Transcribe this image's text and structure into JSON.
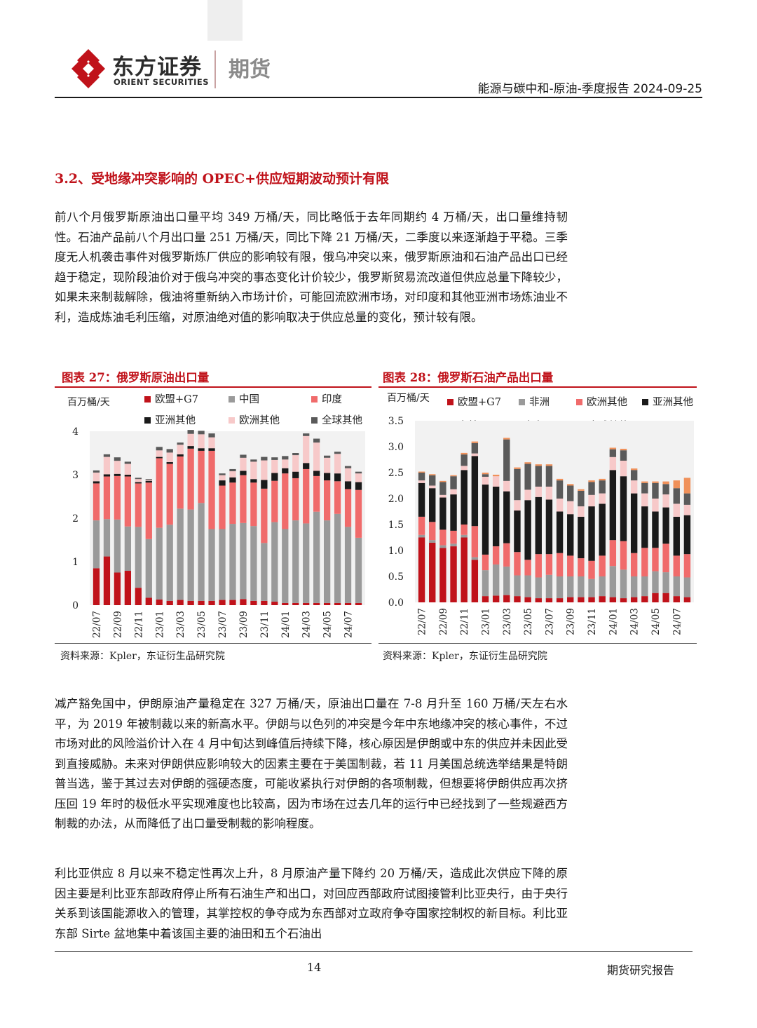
{
  "header": {
    "logo_cn": "东方证券",
    "logo_en": "ORIENT SECURITIES",
    "logo_tag": "期货",
    "report_title": "能源与碳中和-原油-季度报告 2024-09-25"
  },
  "section": {
    "title": "3.2、受地缘冲突影响的 OPEC+供应短期波动预计有限",
    "paragraph1": "前八个月俄罗斯原油出口量平均 349 万桶/天，同比略低于去年同期约 4 万桶/天，出口量维持韧性。石油产品前八个月出口量 251 万桶/天，同比下降 21 万桶/天，二季度以来逐渐趋于平稳。三季度无人机袭击事件对俄罗斯炼厂供应的影响较有限，俄乌冲突以来，俄罗斯原油和石油产品出口已经趋于稳定，现阶段油价对于俄乌冲突的事态变化计价较少，俄罗斯贸易流改道但供应总量下降较少，如果未来制裁解除，俄油将重新纳入市场计价，可能回流欧洲市场，对印度和其他亚洲市场炼油业不利，造成炼油毛利压缩，对原油绝对值的影响取决于供应总量的变化，预计较有限。",
    "paragraph2": "减产豁免国中，伊朗原油产量稳定在 327 万桶/天，原油出口量在 7-8 月升至 160 万桶/天左右水平，为 2019 年被制裁以来的新高水平。伊朗与以色列的冲突是今年中东地缘冲突的核心事件，不过市场对此的风险溢价计入在 4 月中旬达到峰值后持续下降，核心原因是伊朗或中东的供应并未因此受到直接威胁。未来对伊朗供应影响较大的因素主要在于美国制裁，若 11 月美国总统选举结果是特朗普当选，鉴于其过去对伊朗的强硬态度，可能收紧执行对伊朗的各项制裁，但想要将伊朗供应再次挤压回 19 年时的极低水平实现难度也比较高，因为市场在过去几年的运行中已经找到了一些规避西方制裁的办法，从而降低了出口量受制裁的影响程度。",
    "paragraph3": "利比亚供应 8 月以来不稳定性再次上升，8 月原油产量下降约 20 万桶/天，造成此次供应下降的原因主要是利比亚东部政府停止所有石油生产和出口，对回应西部政府试图接管利比亚央行，由于央行关系到该国能源收入的管理，其掌控权的争夺成为东西部对立政府争夺国家控制权的新目标。利比亚东部 Sirte 盆地集中着该国主要的油田和五个石油出"
  },
  "footer": {
    "page_number": "14",
    "label": "期货研究报告"
  },
  "chart_data": [
    {
      "type": "bar",
      "stacked": true,
      "title": "图表 27：俄罗斯原油出口量",
      "ylabel": "百万桶/天",
      "source": "资料来源：Kpler，东证衍生品研究院",
      "ylim": [
        0,
        4
      ],
      "yticks": [
        "0",
        "1",
        "2",
        "3",
        "4"
      ],
      "xtick_labels": [
        "22/07",
        "22/09",
        "22/11",
        "23/01",
        "23/03",
        "23/05",
        "23/07",
        "23/09",
        "23/11",
        "24/01",
        "24/03",
        "24/05",
        "24/07"
      ],
      "categories": [
        "22/07",
        "22/08",
        "22/09",
        "22/10",
        "22/11",
        "22/12",
        "23/01",
        "23/02",
        "23/03",
        "23/04",
        "23/05",
        "23/06",
        "23/07",
        "23/08",
        "23/09",
        "23/10",
        "23/11",
        "23/12",
        "24/01",
        "24/02",
        "24/03",
        "24/04",
        "24/05",
        "24/06",
        "24/07",
        "24/08"
      ],
      "series": [
        {
          "name": "欧盟+G7",
          "color": "#c0121a",
          "values": [
            0.85,
            1.12,
            0.75,
            0.79,
            0.4,
            0.17,
            0.13,
            0.1,
            0.12,
            0.1,
            0.1,
            0.1,
            0.12,
            0.12,
            0.14,
            0.1,
            0.1,
            0.08,
            0.05,
            0.05,
            0.05,
            0.05,
            0.05,
            0.05,
            0.05,
            0.05
          ]
        },
        {
          "name": "中国",
          "color": "#9a9a9a",
          "values": [
            1.1,
            0.86,
            1.22,
            1.02,
            1.4,
            1.35,
            1.65,
            1.75,
            2.1,
            2.1,
            2.25,
            1.65,
            1.63,
            1.75,
            1.75,
            1.72,
            1.33,
            1.83,
            1.7,
            1.9,
            1.83,
            2.1,
            1.9,
            2.05,
            1.75,
            1.5
          ]
        },
        {
          "name": "印度",
          "color": "#f06b6b",
          "values": [
            0.85,
            0.98,
            1.0,
            1.15,
            1.0,
            1.3,
            1.6,
            1.4,
            1.2,
            1.4,
            1.2,
            1.8,
            1.0,
            0.95,
            1.1,
            1.0,
            1.25,
            0.95,
            1.28,
            0.97,
            1.25,
            0.82,
            0.92,
            0.75,
            0.87,
            1.1
          ]
        },
        {
          "name": "亚洲其他",
          "color": "#1a1a1a",
          "values": [
            0.05,
            0.05,
            0.05,
            0.04,
            0.03,
            0.04,
            0.03,
            0.04,
            0.05,
            0.06,
            0.06,
            0.06,
            0.12,
            0.12,
            0.1,
            0.08,
            0.2,
            0.18,
            0.12,
            0.15,
            0.14,
            0.12,
            0.17,
            0.18,
            0.18,
            0.18
          ]
        },
        {
          "name": "欧洲其他",
          "color": "#f7c9c9",
          "values": [
            0.2,
            0.4,
            0.3,
            0.25,
            0.07,
            0.02,
            0.15,
            0.22,
            0.22,
            0.28,
            0.32,
            0.25,
            0.12,
            0.14,
            0.3,
            0.4,
            0.45,
            0.3,
            0.2,
            0.38,
            0.62,
            0.65,
            0.35,
            0.45,
            0.3,
            0.2
          ]
        },
        {
          "name": "全球其他",
          "color": "#5a5a5a",
          "values": [
            0.05,
            0.06,
            0.08,
            0.05,
            0.03,
            0.02,
            0.08,
            0.08,
            0.05,
            0.09,
            0.08,
            0.09,
            0.04,
            0.05,
            0.07,
            0.05,
            0.08,
            0.06,
            0.08,
            0.05,
            0.06,
            0.09,
            0.05,
            0.05,
            0.05,
            0.04
          ]
        }
      ]
    },
    {
      "type": "bar",
      "stacked": true,
      "title": "图表 28：俄罗斯石油产品出口量",
      "ylabel": "百万桶/天",
      "source": "资料来源：Kpler，东证衍生品研究院",
      "ylim": [
        0,
        3.5
      ],
      "yticks": [
        "0.0",
        "0.5",
        "1.0",
        "1.5",
        "2.0",
        "2.5",
        "3.0",
        "3.5"
      ],
      "xtick_labels": [
        "22/07",
        "22/09",
        "22/11",
        "23/01",
        "23/03",
        "23/05",
        "23/07",
        "23/09",
        "23/11",
        "24/01",
        "24/03",
        "24/05",
        "24/07"
      ],
      "categories": [
        "22/07",
        "22/08",
        "22/09",
        "22/10",
        "22/11",
        "22/12",
        "23/01",
        "23/02",
        "23/03",
        "23/04",
        "23/05",
        "23/06",
        "23/07",
        "23/08",
        "23/09",
        "23/10",
        "23/11",
        "23/12",
        "24/01",
        "24/02",
        "24/03",
        "24/04",
        "24/05",
        "24/06",
        "24/07",
        "24/08"
      ],
      "series": [
        {
          "name": "欧盟+G7",
          "color": "#c0121a",
          "values": [
            1.25,
            1.15,
            1.05,
            1.08,
            1.25,
            0.82,
            0.12,
            0.13,
            0.14,
            0.12,
            0.1,
            0.08,
            0.08,
            0.08,
            0.1,
            0.1,
            0.1,
            0.12,
            0.1,
            0.08,
            0.1,
            0.12,
            0.18,
            0.18,
            0.12,
            0.1
          ]
        },
        {
          "name": "非洲",
          "color": "#9a9a9a",
          "values": [
            0.05,
            0.05,
            0.05,
            0.05,
            0.05,
            0.05,
            0.5,
            0.6,
            0.55,
            0.4,
            0.42,
            0.4,
            0.45,
            0.42,
            0.4,
            0.4,
            0.35,
            0.38,
            0.6,
            0.55,
            0.4,
            0.38,
            0.42,
            0.4,
            0.38,
            0.38
          ]
        },
        {
          "name": "欧洲其他",
          "color": "#f06b6b",
          "values": [
            0.35,
            0.35,
            0.3,
            0.25,
            0.2,
            0.6,
            0.3,
            0.35,
            0.45,
            0.45,
            0.3,
            0.45,
            0.4,
            0.45,
            0.4,
            0.35,
            0.35,
            0.4,
            0.5,
            0.55,
            0.45,
            0.55,
            0.45,
            0.55,
            0.4,
            0.45
          ]
        },
        {
          "name": "亚洲其他",
          "color": "#1a1a1a",
          "values": [
            0.65,
            0.65,
            0.62,
            0.7,
            1.05,
            1.35,
            1.35,
            1.15,
            1.0,
            0.8,
            1.15,
            1.1,
            1.05,
            0.8,
            0.8,
            0.8,
            1.05,
            1.0,
            1.35,
            1.25,
            1.15,
            0.8,
            0.7,
            0.7,
            0.75,
            0.75
          ]
        },
        {
          "name": "南美",
          "color": "#f7c9c9",
          "values": [
            0.05,
            0.05,
            0.05,
            0.1,
            0.08,
            0.05,
            0.15,
            0.2,
            0.2,
            0.2,
            0.2,
            0.2,
            0.25,
            0.25,
            0.25,
            0.2,
            0.22,
            0.2,
            0.25,
            0.3,
            0.25,
            0.25,
            0.25,
            0.25,
            0.25,
            0.2
          ]
        },
        {
          "name": "中东",
          "color": "#5a5a5a",
          "values": [
            0.15,
            0.2,
            0.25,
            0.25,
            0.22,
            0.2,
            0.05,
            0.0,
            0.8,
            0.6,
            0.5,
            0.4,
            0.4,
            0.35,
            0.3,
            0.3,
            0.25,
            0.25,
            0.15,
            0.2,
            0.2,
            0.2,
            0.3,
            0.2,
            0.3,
            0.22
          ]
        },
        {
          "name": "全球其他",
          "color": "#f0915a",
          "values": [
            0.02,
            0.02,
            0.02,
            0.02,
            0.03,
            0.03,
            0.03,
            0.03,
            0.03,
            0.03,
            0.03,
            0.03,
            0.03,
            0.03,
            0.03,
            0.03,
            0.03,
            0.03,
            0.03,
            0.03,
            0.03,
            0.03,
            0.03,
            0.05,
            0.15,
            0.3
          ]
        }
      ]
    }
  ]
}
